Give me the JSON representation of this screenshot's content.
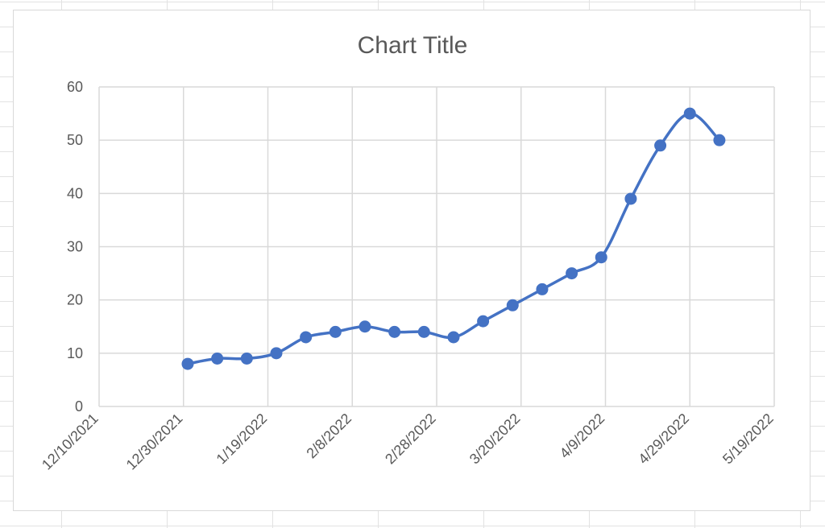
{
  "chart_data": {
    "type": "line",
    "title": "Chart Title",
    "xlabel": "",
    "ylabel": "",
    "x_axis": {
      "type": "date",
      "range": [
        "2021-12-10",
        "2022-05-19"
      ],
      "tick_labels": [
        "12/10/2021",
        "12/30/2021",
        "1/19/2022",
        "2/8/2022",
        "2/28/2022",
        "3/20/2022",
        "4/9/2022",
        "4/29/2022",
        "5/19/2022"
      ]
    },
    "y_axis": {
      "range": [
        0,
        60
      ],
      "tick_labels": [
        "0",
        "10",
        "20",
        "30",
        "40",
        "50",
        "60"
      ]
    },
    "grid": true,
    "legend": "none",
    "smooth": true,
    "series_color": "#4472C4",
    "series": [
      {
        "points": [
          {
            "x": "2021-12-31",
            "y": 8
          },
          {
            "x": "2022-01-07",
            "y": 9
          },
          {
            "x": "2022-01-14",
            "y": 9
          },
          {
            "x": "2022-01-21",
            "y": 10
          },
          {
            "x": "2022-01-28",
            "y": 13
          },
          {
            "x": "2022-02-04",
            "y": 14
          },
          {
            "x": "2022-02-11",
            "y": 15
          },
          {
            "x": "2022-02-18",
            "y": 14
          },
          {
            "x": "2022-02-25",
            "y": 14
          },
          {
            "x": "2022-03-04",
            "y": 13
          },
          {
            "x": "2022-03-11",
            "y": 16
          },
          {
            "x": "2022-03-18",
            "y": 19
          },
          {
            "x": "2022-03-25",
            "y": 22
          },
          {
            "x": "2022-04-01",
            "y": 25
          },
          {
            "x": "2022-04-08",
            "y": 28
          },
          {
            "x": "2022-04-15",
            "y": 39
          },
          {
            "x": "2022-04-22",
            "y": 49
          },
          {
            "x": "2022-04-29",
            "y": 55
          },
          {
            "x": "2022-05-06",
            "y": 50
          }
        ]
      }
    ]
  }
}
